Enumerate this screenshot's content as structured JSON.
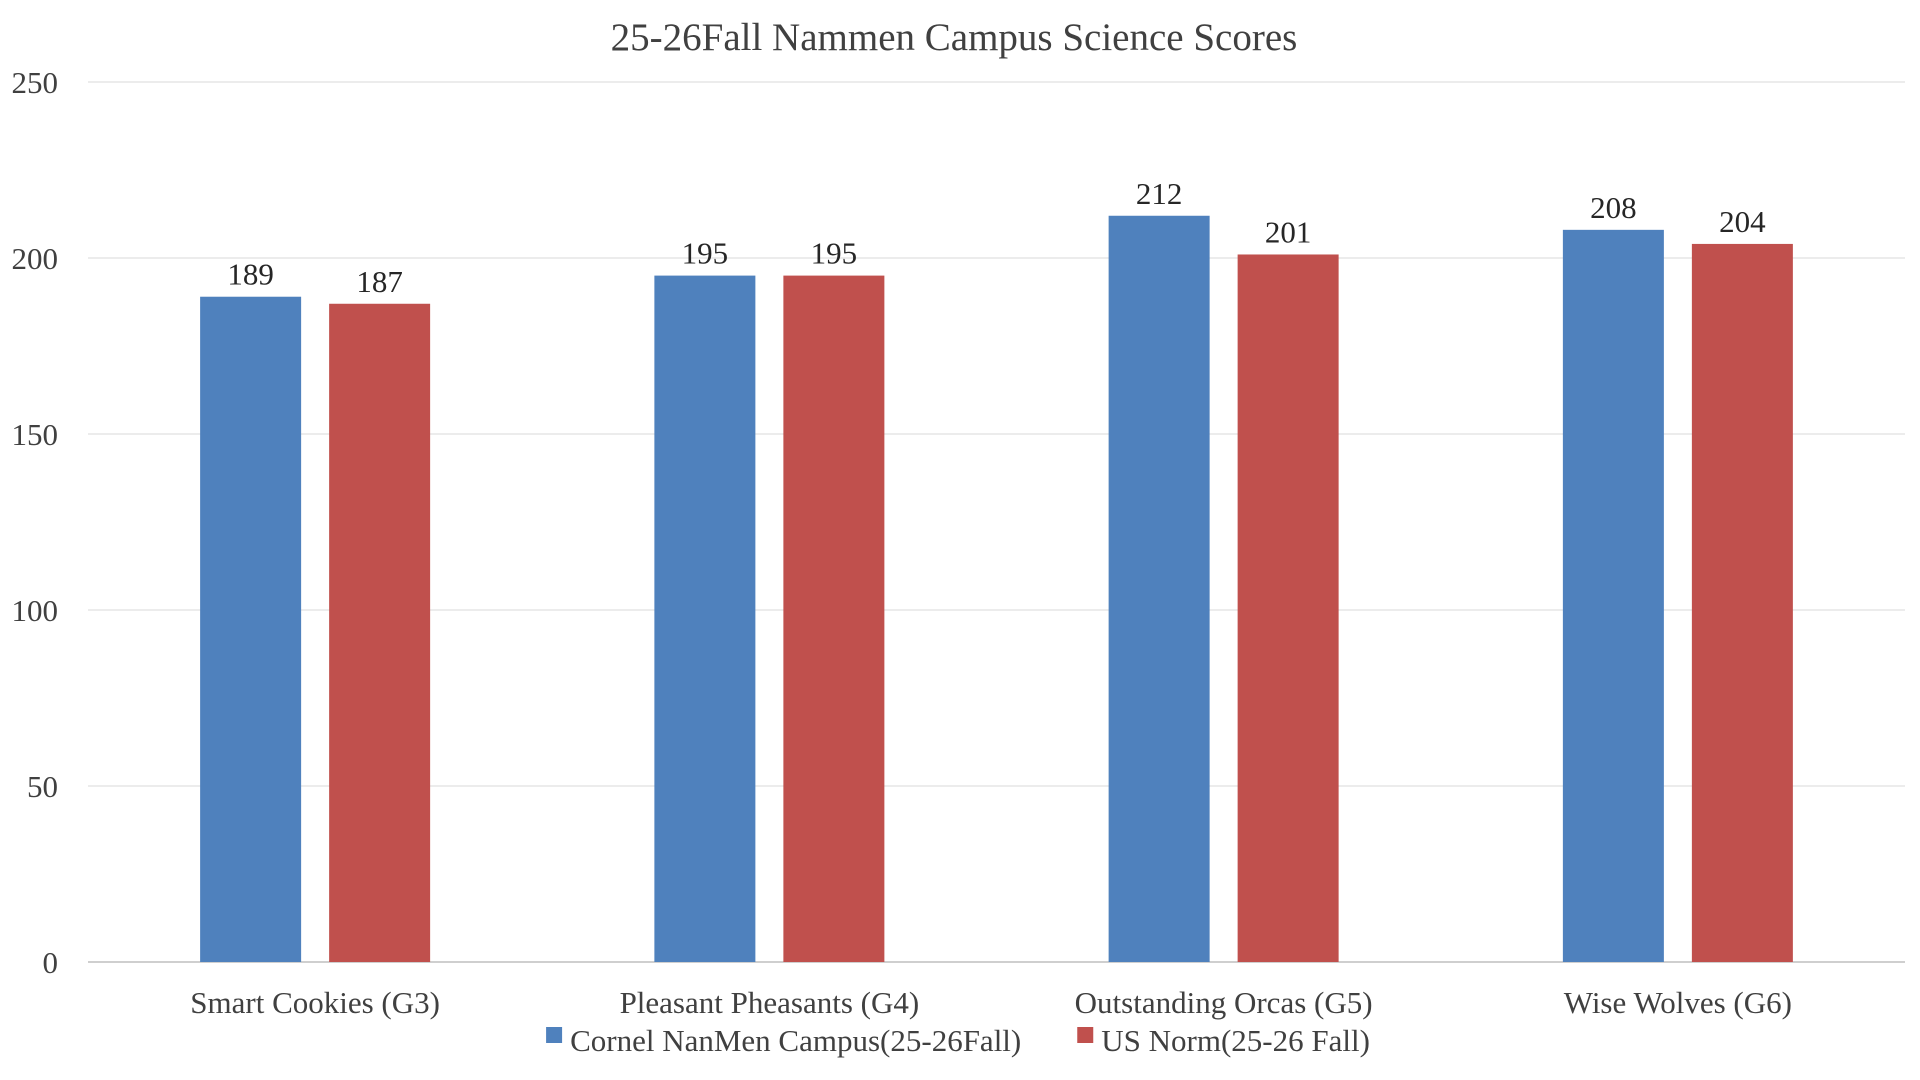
{
  "chart_data": {
    "type": "bar",
    "title": "25-26Fall Nammen Campus Science Scores",
    "categories": [
      "Smart Cookies (G3)",
      "Pleasant Pheasants (G4)",
      "Outstanding Orcas (G5)",
      "Wise Wolves (G6)"
    ],
    "series": [
      {
        "name": "Cornel NanMen Campus(25-26Fall)",
        "color": "#4f81bd",
        "values": [
          189,
          195,
          212,
          208
        ]
      },
      {
        "name": "US Norm(25-26 Fall)",
        "color": "#c0504d",
        "values": [
          187,
          195,
          201,
          204
        ]
      }
    ],
    "ylim": [
      0,
      250
    ],
    "yticks": [
      0,
      50,
      100,
      150,
      200,
      250
    ],
    "xlabel": "",
    "ylabel": "",
    "grid": true,
    "legend": "bottom",
    "data_labels": true
  }
}
